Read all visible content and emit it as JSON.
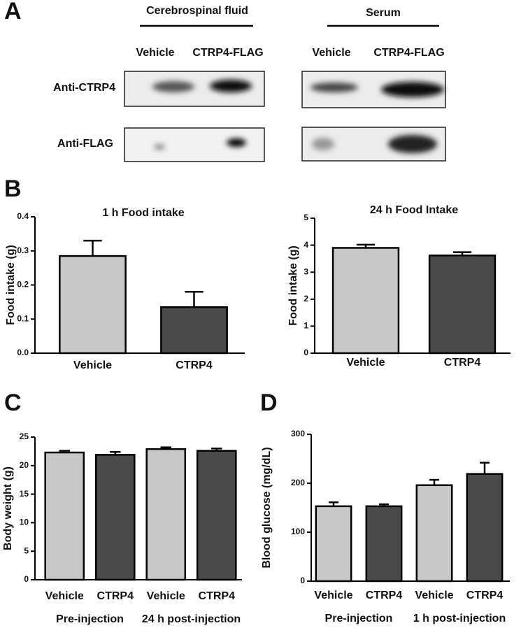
{
  "panels": [
    "A",
    "B",
    "C",
    "D"
  ],
  "blot": {
    "groups": [
      "Cerebrospinal fluid",
      "Serum"
    ],
    "lanes": [
      "Vehicle",
      "CTRP4-FLAG",
      "Vehicle",
      "CTRP4-FLAG"
    ],
    "rows": [
      "Anti-CTRP4",
      "Anti-FLAG"
    ]
  },
  "chart_data": [
    {
      "type": "bar",
      "title": "1 h Food intake",
      "y_label": "Food intake (g)",
      "categories": [
        "Vehicle",
        "CTRP4"
      ],
      "values": [
        0.285,
        0.135
      ],
      "errors": [
        0.045,
        0.045
      ],
      "colors": [
        "#c8c8c8",
        "#4a4a4a"
      ],
      "ylim": [
        0,
        0.4
      ],
      "yticks": [
        {
          "value": 0,
          "label": "0.0"
        },
        0.1,
        0.2,
        0.3,
        0.4
      ]
    },
    {
      "type": "bar",
      "title": "24 h Food Intake",
      "y_label": "Food intake (g)",
      "categories": [
        "Vehicle",
        "CTRP4"
      ],
      "values": [
        3.9,
        3.62
      ],
      "errors": [
        0.12,
        0.12
      ],
      "colors": [
        "#c8c8c8",
        "#4a4a4a"
      ],
      "ylim": [
        0,
        5
      ],
      "yticks": [
        0,
        1,
        2,
        3,
        4,
        5
      ]
    },
    {
      "type": "bar",
      "y_label": "Body weight (g)",
      "categories": [
        "Vehicle",
        "CTRP4",
        "Vehicle",
        "CTRP4"
      ],
      "groups": [
        "Pre-injection",
        "24 h post-injection"
      ],
      "values": [
        22.3,
        21.9,
        22.9,
        22.6
      ],
      "errors": [
        0.3,
        0.5,
        0.3,
        0.4
      ],
      "colors": [
        "#c8c8c8",
        "#4a4a4a",
        "#c8c8c8",
        "#4a4a4a"
      ],
      "ylim": [
        0,
        25
      ],
      "yticks": [
        0,
        5,
        10,
        15,
        20,
        25
      ]
    },
    {
      "type": "bar",
      "y_label": "Blood glucose (mg/dL)",
      "categories": [
        "Vehicle",
        "CTRP4",
        "Vehicle",
        "CTRP4"
      ],
      "groups": [
        "Pre-injection",
        "1 h post-injection"
      ],
      "values": [
        153,
        153,
        196,
        219
      ],
      "errors": [
        8,
        4,
        11,
        23
      ],
      "colors": [
        "#c8c8c8",
        "#4a4a4a",
        "#c8c8c8",
        "#4a4a4a"
      ],
      "ylim": [
        0,
        300
      ],
      "yticks": [
        0,
        100,
        200,
        300
      ]
    }
  ]
}
